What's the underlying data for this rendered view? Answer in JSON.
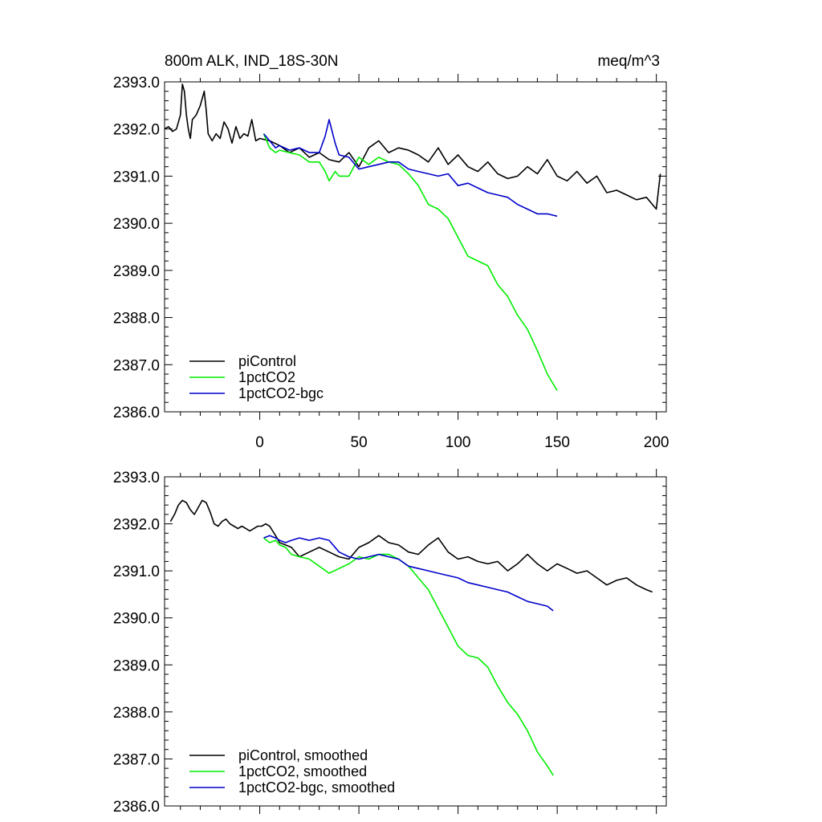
{
  "chart_data": [
    {
      "type": "line",
      "title": "800m ALK, IND_18S-30N",
      "units": "meq/m^3",
      "xlim": [
        -48,
        205
      ],
      "ylim": [
        2386.0,
        2393.0
      ],
      "x_ticks": [
        "0",
        "50",
        "100",
        "150",
        "200"
      ],
      "y_ticks": [
        "2386.0",
        "2387.0",
        "2388.0",
        "2389.0",
        "2390.0",
        "2391.0",
        "2392.0",
        "2393.0"
      ],
      "colors": {
        "piControl": "#000000",
        "1pctCO2": "#00ee00",
        "1pctCO2-bgc": "#0000cc"
      },
      "series": [
        {
          "name": "piControl",
          "x": [
            -48,
            -46,
            -44,
            -42,
            -40,
            -39,
            -38,
            -37,
            -36,
            -35,
            -34,
            -32,
            -30,
            -28,
            -27,
            -26,
            -24,
            -22,
            -20,
            -18,
            -16,
            -14,
            -12,
            -10,
            -8,
            -6,
            -4,
            -2,
            0,
            5,
            10,
            15,
            20,
            25,
            30,
            35,
            40,
            45,
            50,
            55,
            60,
            65,
            70,
            75,
            80,
            85,
            90,
            95,
            100,
            105,
            110,
            115,
            120,
            125,
            130,
            135,
            140,
            145,
            150,
            155,
            160,
            165,
            170,
            175,
            180,
            185,
            190,
            195,
            200,
            202
          ],
          "values": [
            2392.0,
            2392.05,
            2391.95,
            2392.0,
            2392.3,
            2392.95,
            2392.8,
            2392.3,
            2392.0,
            2391.8,
            2392.2,
            2392.3,
            2392.5,
            2392.8,
            2392.4,
            2391.9,
            2391.75,
            2391.9,
            2391.8,
            2392.15,
            2392.0,
            2391.7,
            2392.05,
            2391.8,
            2391.9,
            2391.85,
            2392.2,
            2391.75,
            2391.8,
            2391.75,
            2391.65,
            2391.5,
            2391.6,
            2391.4,
            2391.5,
            2391.35,
            2391.3,
            2391.5,
            2391.2,
            2391.6,
            2391.75,
            2391.5,
            2391.6,
            2391.55,
            2391.45,
            2391.3,
            2391.6,
            2391.25,
            2391.45,
            2391.2,
            2391.1,
            2391.3,
            2391.05,
            2390.95,
            2391.0,
            2391.2,
            2391.05,
            2391.35,
            2391.0,
            2390.9,
            2391.1,
            2390.85,
            2391.0,
            2390.65,
            2390.7,
            2390.6,
            2390.5,
            2390.55,
            2390.3,
            2391.05
          ]
        },
        {
          "name": "1pctCO2",
          "x": [
            2,
            5,
            8,
            10,
            15,
            20,
            25,
            30,
            33,
            35,
            38,
            40,
            45,
            50,
            55,
            60,
            65,
            70,
            75,
            80,
            85,
            90,
            95,
            100,
            105,
            110,
            115,
            120,
            125,
            130,
            135,
            140,
            145,
            150
          ],
          "values": [
            2391.9,
            2391.6,
            2391.5,
            2391.55,
            2391.5,
            2391.45,
            2391.3,
            2391.3,
            2391.1,
            2390.9,
            2391.1,
            2391.0,
            2391.0,
            2391.4,
            2391.25,
            2391.4,
            2391.3,
            2391.25,
            2391.05,
            2390.8,
            2390.4,
            2390.3,
            2390.1,
            2389.7,
            2389.3,
            2389.2,
            2389.1,
            2388.7,
            2388.45,
            2388.05,
            2387.75,
            2387.3,
            2386.8,
            2386.45
          ]
        },
        {
          "name": "1pctCO2-bgc",
          "x": [
            2,
            5,
            8,
            10,
            15,
            20,
            25,
            30,
            33,
            35,
            38,
            40,
            45,
            50,
            55,
            60,
            65,
            70,
            75,
            80,
            85,
            90,
            95,
            100,
            105,
            110,
            115,
            120,
            125,
            130,
            135,
            140,
            145,
            150
          ],
          "values": [
            2391.9,
            2391.75,
            2391.6,
            2391.65,
            2391.55,
            2391.6,
            2391.5,
            2391.5,
            2391.85,
            2392.2,
            2391.7,
            2391.45,
            2391.4,
            2391.15,
            2391.2,
            2391.25,
            2391.3,
            2391.3,
            2391.15,
            2391.1,
            2391.05,
            2391.0,
            2391.05,
            2390.8,
            2390.85,
            2390.75,
            2390.65,
            2390.6,
            2390.55,
            2390.4,
            2390.3,
            2390.2,
            2390.2,
            2390.15
          ]
        }
      ]
    },
    {
      "type": "line",
      "xlim": [
        -48,
        205
      ],
      "ylim": [
        2386.0,
        2393.0
      ],
      "y_ticks": [
        "2386.0",
        "2387.0",
        "2388.0",
        "2389.0",
        "2390.0",
        "2391.0",
        "2392.0",
        "2393.0"
      ],
      "colors": {
        "piControl, smoothed": "#000000",
        "1pctCO2, smoothed": "#00ee00",
        "1pctCO2-bgc, smoothed": "#0000cc"
      },
      "series": [
        {
          "name": "piControl, smoothed",
          "x": [
            -45,
            -43,
            -41,
            -39,
            -37,
            -35,
            -33,
            -31,
            -29,
            -27,
            -25,
            -23,
            -21,
            -19,
            -17,
            -15,
            -13,
            -11,
            -9,
            -7,
            -5,
            -3,
            -1,
            1,
            3,
            5,
            8,
            10,
            13,
            16,
            20,
            25,
            30,
            35,
            40,
            45,
            50,
            55,
            60,
            65,
            70,
            75,
            80,
            85,
            90,
            95,
            100,
            105,
            110,
            115,
            120,
            125,
            130,
            135,
            140,
            145,
            150,
            155,
            160,
            165,
            170,
            175,
            180,
            185,
            190,
            195,
            198
          ],
          "values": [
            2392.05,
            2392.2,
            2392.4,
            2392.5,
            2392.45,
            2392.3,
            2392.2,
            2392.35,
            2392.5,
            2392.45,
            2392.25,
            2392.0,
            2391.95,
            2392.05,
            2392.1,
            2392.0,
            2391.95,
            2391.9,
            2391.95,
            2391.9,
            2391.85,
            2391.9,
            2391.95,
            2391.95,
            2392.0,
            2391.95,
            2391.75,
            2391.6,
            2391.55,
            2391.5,
            2391.3,
            2391.4,
            2391.5,
            2391.4,
            2391.3,
            2391.25,
            2391.5,
            2391.6,
            2391.75,
            2391.6,
            2391.55,
            2391.4,
            2391.35,
            2391.55,
            2391.7,
            2391.4,
            2391.25,
            2391.3,
            2391.2,
            2391.15,
            2391.2,
            2391.0,
            2391.15,
            2391.35,
            2391.15,
            2391.0,
            2391.15,
            2391.05,
            2390.95,
            2391.0,
            2390.85,
            2390.7,
            2390.8,
            2390.85,
            2390.7,
            2390.6,
            2390.55
          ]
        },
        {
          "name": "1pctCO2, smoothed",
          "x": [
            2,
            5,
            8,
            10,
            13,
            16,
            20,
            25,
            30,
            35,
            40,
            45,
            50,
            55,
            60,
            65,
            70,
            75,
            80,
            85,
            90,
            95,
            100,
            105,
            110,
            115,
            120,
            125,
            130,
            135,
            140,
            145,
            148
          ],
          "values": [
            2391.7,
            2391.6,
            2391.65,
            2391.55,
            2391.5,
            2391.35,
            2391.3,
            2391.25,
            2391.1,
            2390.95,
            2391.05,
            2391.15,
            2391.3,
            2391.25,
            2391.35,
            2391.35,
            2391.25,
            2391.1,
            2390.85,
            2390.6,
            2390.2,
            2389.8,
            2389.4,
            2389.2,
            2389.15,
            2388.95,
            2388.55,
            2388.2,
            2387.95,
            2387.6,
            2387.15,
            2386.85,
            2386.65
          ]
        },
        {
          "name": "1pctCO2-bgc, smoothed",
          "x": [
            2,
            5,
            8,
            10,
            13,
            16,
            20,
            25,
            30,
            35,
            40,
            45,
            50,
            55,
            60,
            65,
            70,
            75,
            80,
            85,
            90,
            95,
            100,
            105,
            110,
            115,
            120,
            125,
            130,
            135,
            140,
            145,
            148
          ],
          "values": [
            2391.7,
            2391.75,
            2391.7,
            2391.65,
            2391.6,
            2391.65,
            2391.7,
            2391.65,
            2391.7,
            2391.65,
            2391.4,
            2391.3,
            2391.25,
            2391.3,
            2391.35,
            2391.3,
            2391.25,
            2391.1,
            2391.05,
            2391.0,
            2390.95,
            2390.9,
            2390.85,
            2390.75,
            2390.7,
            2390.65,
            2390.6,
            2390.55,
            2390.45,
            2390.35,
            2390.3,
            2390.25,
            2390.15
          ]
        }
      ]
    }
  ]
}
